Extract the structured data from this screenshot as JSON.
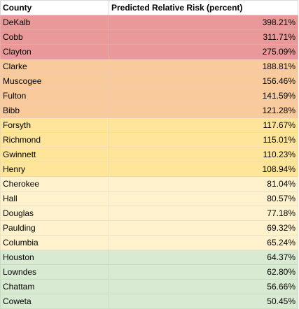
{
  "table": {
    "headers": {
      "county": "County",
      "risk": "Predicted Relative Risk (percent)"
    },
    "tier_colors": {
      "red": "#ea9999",
      "orange": "#f9cb9c",
      "yellow": "#ffe599",
      "cream": "#fff2cc",
      "green": "#d9ead3"
    },
    "rows": [
      {
        "county": "DeKalb",
        "risk": "398.21%",
        "tier": "red"
      },
      {
        "county": "Cobb",
        "risk": "311.71%",
        "tier": "red"
      },
      {
        "county": "Clayton",
        "risk": "275.09%",
        "tier": "red"
      },
      {
        "county": "Clarke",
        "risk": "188.81%",
        "tier": "orange"
      },
      {
        "county": "Muscogee",
        "risk": "156.46%",
        "tier": "orange"
      },
      {
        "county": "Fulton",
        "risk": "141.59%",
        "tier": "orange"
      },
      {
        "county": "Bibb",
        "risk": "121.28%",
        "tier": "orange"
      },
      {
        "county": "Forsyth",
        "risk": "117.67%",
        "tier": "yellow"
      },
      {
        "county": "Richmond",
        "risk": "115.01%",
        "tier": "yellow"
      },
      {
        "county": "Gwinnett",
        "risk": "110.23%",
        "tier": "yellow"
      },
      {
        "county": "Henry",
        "risk": "108.94%",
        "tier": "yellow"
      },
      {
        "county": "Cherokee",
        "risk": "81.04%",
        "tier": "cream"
      },
      {
        "county": "Hall",
        "risk": "80.57%",
        "tier": "cream"
      },
      {
        "county": "Douglas",
        "risk": "77.18%",
        "tier": "cream"
      },
      {
        "county": "Paulding",
        "risk": "69.32%",
        "tier": "cream"
      },
      {
        "county": "Columbia",
        "risk": "65.24%",
        "tier": "cream"
      },
      {
        "county": "Houston",
        "risk": "64.37%",
        "tier": "green"
      },
      {
        "county": "Lowndes",
        "risk": "62.80%",
        "tier": "green"
      },
      {
        "county": "Chattam",
        "risk": "56.66%",
        "tier": "green"
      },
      {
        "county": "Coweta",
        "risk": "50.45%",
        "tier": "green"
      }
    ]
  }
}
